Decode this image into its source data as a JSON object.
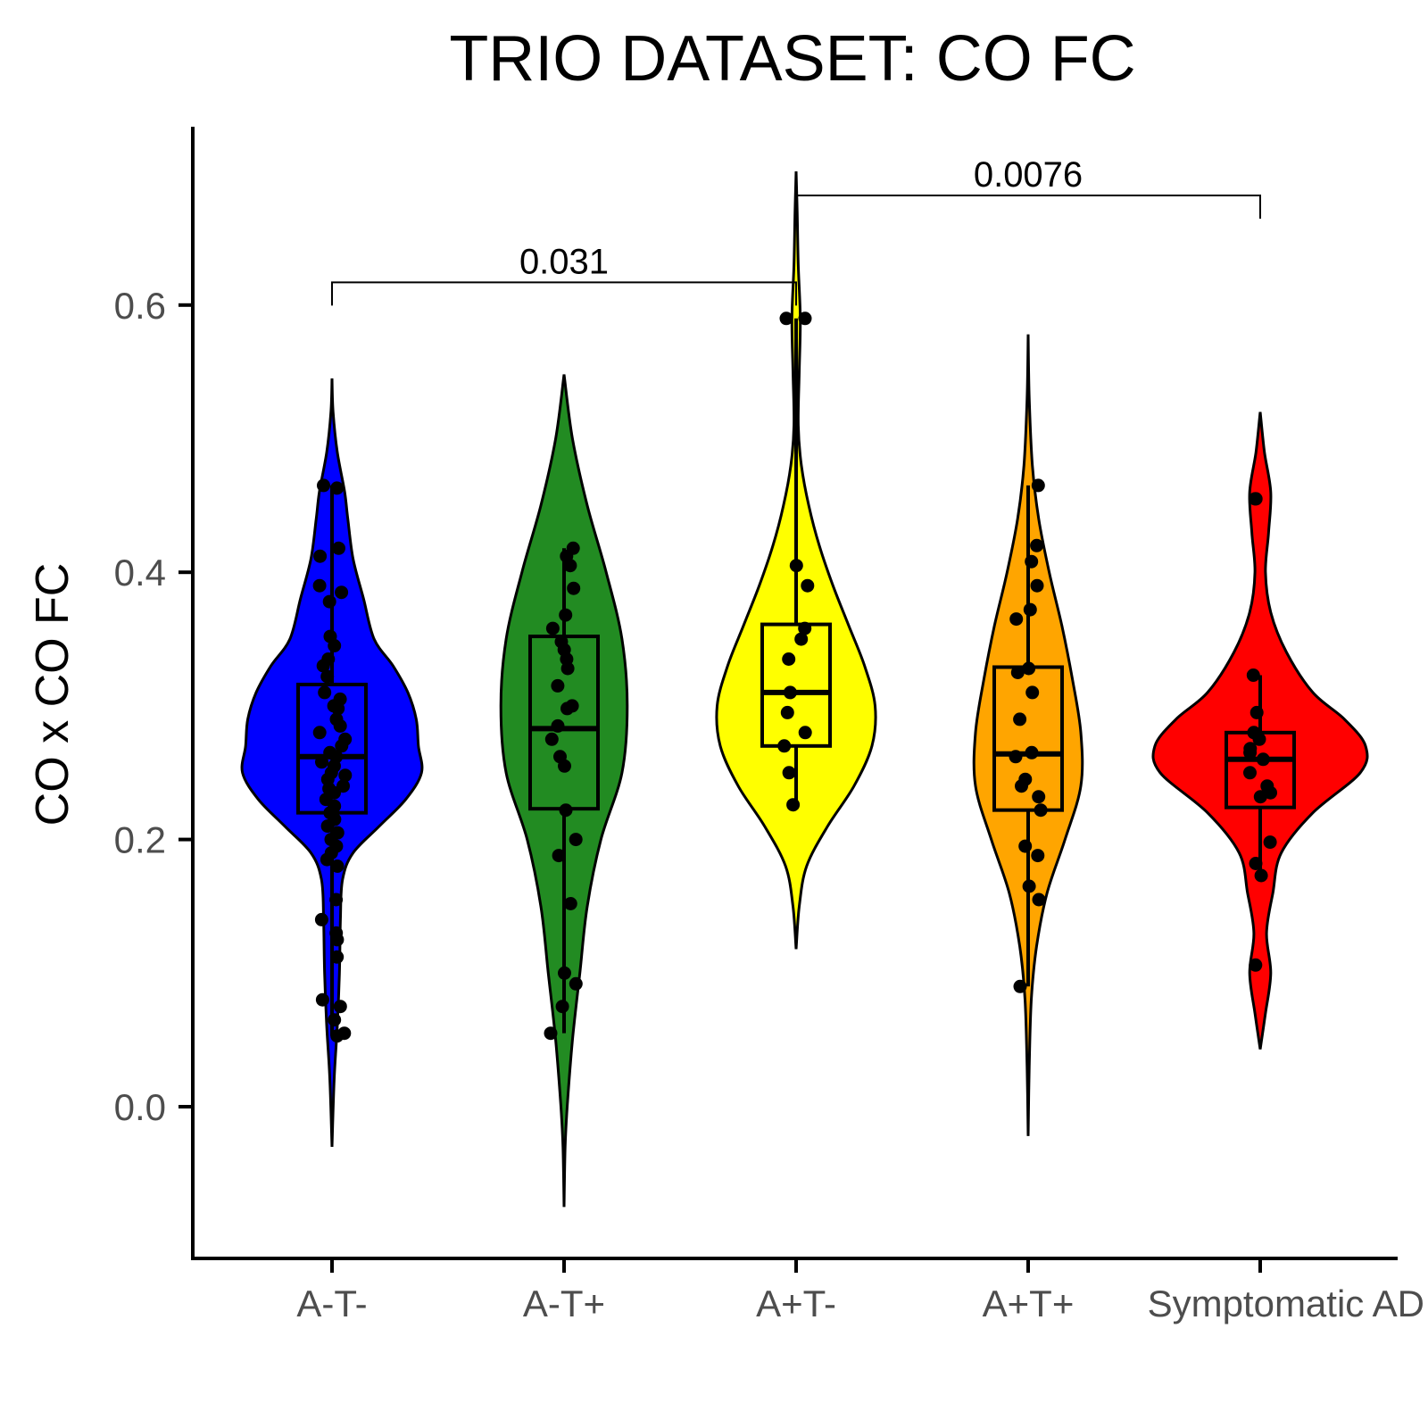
{
  "chart_data": {
    "type": "violin",
    "title": "TRIO DATASET: CO FC",
    "xlabel": "",
    "ylabel": "CO x CO FC",
    "ylim": [
      -0.11,
      0.73
    ],
    "yticks": [
      0.0,
      0.2,
      0.4,
      0.6
    ],
    "ytick_labels": [
      "0.0",
      "0.2",
      "0.4",
      "0.6"
    ],
    "grid": false,
    "legend": "none",
    "categories": [
      "A-T-",
      "A-T+",
      "A+T-",
      "A+T+",
      "Symptomatic AD"
    ],
    "series": [
      {
        "category": "A-T-",
        "color": "#0000ff",
        "violin_range": [
          -0.03,
          0.545
        ],
        "box": {
          "q1": 0.22,
          "median": 0.262,
          "q3": 0.316,
          "whisker_low": 0.053,
          "whisker_high": 0.465
        },
        "density": [
          [
            -0.03,
            0.0
          ],
          [
            0.02,
            0.02
          ],
          [
            0.06,
            0.05
          ],
          [
            0.1,
            0.07
          ],
          [
            0.14,
            0.08
          ],
          [
            0.17,
            0.1
          ],
          [
            0.19,
            0.2
          ],
          [
            0.21,
            0.45
          ],
          [
            0.23,
            0.7
          ],
          [
            0.25,
            0.85
          ],
          [
            0.27,
            0.82
          ],
          [
            0.29,
            0.8
          ],
          [
            0.31,
            0.72
          ],
          [
            0.33,
            0.58
          ],
          [
            0.35,
            0.4
          ],
          [
            0.38,
            0.3
          ],
          [
            0.41,
            0.2
          ],
          [
            0.44,
            0.15
          ],
          [
            0.46,
            0.12
          ],
          [
            0.49,
            0.05
          ],
          [
            0.52,
            0.01
          ],
          [
            0.545,
            0.0
          ]
        ],
        "points": [
          0.465,
          0.463,
          0.418,
          0.412,
          0.39,
          0.385,
          0.378,
          0.352,
          0.345,
          0.335,
          0.33,
          0.322,
          0.31,
          0.305,
          0.3,
          0.298,
          0.29,
          0.285,
          0.28,
          0.275,
          0.27,
          0.265,
          0.262,
          0.258,
          0.255,
          0.25,
          0.248,
          0.245,
          0.24,
          0.238,
          0.235,
          0.23,
          0.225,
          0.22,
          0.215,
          0.21,
          0.205,
          0.2,
          0.195,
          0.19,
          0.185,
          0.18,
          0.155,
          0.14,
          0.13,
          0.125,
          0.112,
          0.08,
          0.075,
          0.065,
          0.055,
          0.053
        ]
      },
      {
        "category": "A-T+",
        "color": "#228b22",
        "violin_range": [
          -0.075,
          0.548
        ],
        "box": {
          "q1": 0.223,
          "median": 0.283,
          "q3": 0.352,
          "whisker_low": 0.055,
          "whisker_high": 0.418
        },
        "density": [
          [
            -0.075,
            0.0
          ],
          [
            -0.03,
            0.01
          ],
          [
            0.0,
            0.03
          ],
          [
            0.05,
            0.08
          ],
          [
            0.1,
            0.15
          ],
          [
            0.15,
            0.22
          ],
          [
            0.2,
            0.35
          ],
          [
            0.25,
            0.55
          ],
          [
            0.3,
            0.6
          ],
          [
            0.35,
            0.55
          ],
          [
            0.4,
            0.4
          ],
          [
            0.45,
            0.22
          ],
          [
            0.5,
            0.08
          ],
          [
            0.548,
            0.0
          ]
        ],
        "points": [
          0.418,
          0.412,
          0.405,
          0.388,
          0.368,
          0.358,
          0.348,
          0.342,
          0.335,
          0.328,
          0.315,
          0.3,
          0.298,
          0.285,
          0.275,
          0.262,
          0.255,
          0.222,
          0.2,
          0.188,
          0.152,
          0.1,
          0.092,
          0.075,
          0.055
        ]
      },
      {
        "category": "A+T-",
        "color": "#ffff00",
        "violin_range": [
          0.118,
          0.7
        ],
        "box": {
          "q1": 0.27,
          "median": 0.31,
          "q3": 0.361,
          "whisker_low": 0.227,
          "whisker_high": 0.59
        },
        "density": [
          [
            0.118,
            0.0
          ],
          [
            0.15,
            0.03
          ],
          [
            0.18,
            0.1
          ],
          [
            0.21,
            0.3
          ],
          [
            0.24,
            0.55
          ],
          [
            0.27,
            0.72
          ],
          [
            0.3,
            0.75
          ],
          [
            0.33,
            0.65
          ],
          [
            0.36,
            0.5
          ],
          [
            0.39,
            0.35
          ],
          [
            0.42,
            0.22
          ],
          [
            0.45,
            0.12
          ],
          [
            0.48,
            0.05
          ],
          [
            0.51,
            0.02
          ],
          [
            0.55,
            0.03
          ],
          [
            0.59,
            0.04
          ],
          [
            0.63,
            0.02
          ],
          [
            0.67,
            0.01
          ],
          [
            0.7,
            0.0
          ]
        ],
        "points": [
          0.59,
          0.59,
          0.405,
          0.39,
          0.358,
          0.35,
          0.335,
          0.31,
          0.295,
          0.28,
          0.27,
          0.25,
          0.226
        ]
      },
      {
        "category": "A+T+",
        "color": "#ffa500",
        "violin_range": [
          -0.022,
          0.578
        ],
        "box": {
          "q1": 0.222,
          "median": 0.264,
          "q3": 0.329,
          "whisker_low": 0.09,
          "whisker_high": 0.465
        },
        "density": [
          [
            -0.022,
            0.0
          ],
          [
            0.03,
            0.01
          ],
          [
            0.08,
            0.03
          ],
          [
            0.12,
            0.08
          ],
          [
            0.16,
            0.18
          ],
          [
            0.2,
            0.35
          ],
          [
            0.24,
            0.5
          ],
          [
            0.28,
            0.5
          ],
          [
            0.32,
            0.42
          ],
          [
            0.36,
            0.32
          ],
          [
            0.4,
            0.2
          ],
          [
            0.44,
            0.1
          ],
          [
            0.48,
            0.04
          ],
          [
            0.53,
            0.01
          ],
          [
            0.578,
            0.0
          ]
        ],
        "points": [
          0.465,
          0.42,
          0.408,
          0.39,
          0.372,
          0.365,
          0.328,
          0.325,
          0.31,
          0.29,
          0.265,
          0.262,
          0.245,
          0.24,
          0.232,
          0.222,
          0.195,
          0.188,
          0.165,
          0.155,
          0.09
        ]
      },
      {
        "category": "Symptomatic AD",
        "color": "#ff0000",
        "violin_range": [
          0.043,
          0.52
        ],
        "box": {
          "q1": 0.224,
          "median": 0.26,
          "q3": 0.28,
          "whisker_low": 0.173,
          "whisker_high": 0.323
        },
        "density": [
          [
            0.043,
            0.0
          ],
          [
            0.07,
            0.05
          ],
          [
            0.1,
            0.1
          ],
          [
            0.13,
            0.06
          ],
          [
            0.16,
            0.12
          ],
          [
            0.19,
            0.2
          ],
          [
            0.22,
            0.5
          ],
          [
            0.25,
            0.95
          ],
          [
            0.27,
            1.0
          ],
          [
            0.29,
            0.8
          ],
          [
            0.31,
            0.5
          ],
          [
            0.34,
            0.25
          ],
          [
            0.37,
            0.1
          ],
          [
            0.4,
            0.05
          ],
          [
            0.43,
            0.08
          ],
          [
            0.46,
            0.1
          ],
          [
            0.49,
            0.04
          ],
          [
            0.52,
            0.0
          ]
        ],
        "points": [
          0.455,
          0.455,
          0.323,
          0.295,
          0.28,
          0.275,
          0.268,
          0.265,
          0.26,
          0.25,
          0.24,
          0.235,
          0.232,
          0.198,
          0.182,
          0.173,
          0.106
        ]
      }
    ],
    "comparisons": [
      {
        "groups": [
          "A-T-",
          "A+T-"
        ],
        "label": "0.031",
        "y": 0.617
      },
      {
        "groups": [
          "A+T-",
          "Symptomatic AD"
        ],
        "label": "0.0076",
        "y": 0.682
      }
    ]
  }
}
